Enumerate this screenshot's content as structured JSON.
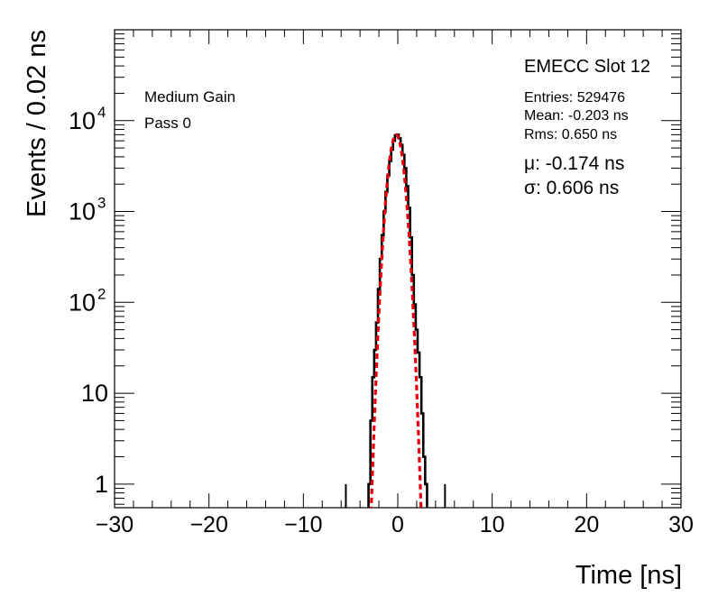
{
  "chart_data": {
    "type": "line",
    "xlabel": "Time [ns]",
    "ylabel": "Events / 0.02 ns",
    "xlim": [
      -30,
      30
    ],
    "ylim": [
      0.55,
      100000
    ],
    "y_scale": "log",
    "grid": false,
    "x_ticks": [
      "−30",
      "−20",
      "−10",
      "0",
      "10",
      "20",
      "30"
    ],
    "x_tick_values": [
      -30,
      -20,
      -10,
      0,
      10,
      20,
      30
    ],
    "y_ticks": [
      {
        "value": 1,
        "base": "1",
        "exp": ""
      },
      {
        "value": 10,
        "base": "10",
        "exp": ""
      },
      {
        "value": 100,
        "base": "10",
        "exp": "2"
      },
      {
        "value": 1000,
        "base": "10",
        "exp": "3"
      },
      {
        "value": 10000,
        "base": "10",
        "exp": "4"
      }
    ],
    "annotations": {
      "left_line1": "Medium Gain",
      "left_line2": "Pass 0",
      "title": "EMECC Slot 12",
      "entries": "Entries: 529476",
      "mean": "Mean: -0.203 ns",
      "rms": "Rms: 0.650 ns",
      "mu": "μ: -0.174 ns",
      "sigma": "σ: 0.606 ns"
    },
    "series": [
      {
        "style": "histogram",
        "color": "#000000",
        "x": [
          -3.0,
          -2.8,
          -2.6,
          -2.4,
          -2.2,
          -2.0,
          -1.8,
          -1.6,
          -1.4,
          -1.2,
          -1.0,
          -0.8,
          -0.6,
          -0.4,
          -0.2,
          0.0,
          0.2,
          0.4,
          0.6,
          0.8,
          1.0,
          1.2,
          1.4,
          1.6,
          1.8,
          2.0,
          2.2,
          2.4,
          2.6,
          2.8,
          3.0
        ],
        "y": [
          1,
          5,
          15,
          30,
          60,
          140,
          300,
          550,
          1000,
          1650,
          2500,
          3600,
          4800,
          6000,
          6900,
          7000,
          6400,
          5400,
          4200,
          3000,
          1900,
          1100,
          520,
          200,
          95,
          50,
          28,
          15,
          6,
          2,
          1
        ]
      },
      {
        "style": "isolated-entries",
        "color": "#000000",
        "x": [
          -5.5,
          5.0
        ],
        "y": [
          1,
          1
        ]
      },
      {
        "style": "gaussian-fit",
        "color": "#e8000b",
        "mu": -0.174,
        "sigma": 0.606,
        "peak": 7000
      }
    ]
  }
}
